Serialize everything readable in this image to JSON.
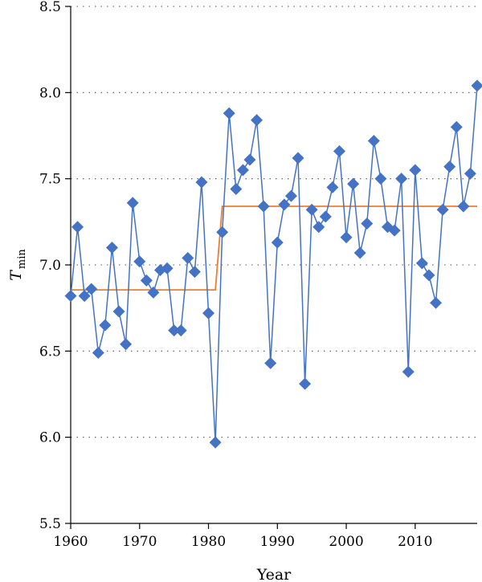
{
  "chart_data": {
    "type": "line",
    "xlabel": "Year",
    "ylabel": "T",
    "ylabel_subscript": "min",
    "xlim": [
      1960,
      2019
    ],
    "ylim": [
      5.5,
      8.5
    ],
    "x_ticks": [
      1960,
      1970,
      1980,
      1990,
      2000,
      2010
    ],
    "x_tick_labels": [
      "1960",
      "1970",
      "1980",
      "1990",
      "2000",
      "2010"
    ],
    "y_ticks": [
      5.5,
      6.0,
      6.5,
      7.0,
      7.5,
      8.0,
      8.5
    ],
    "y_tick_labels": [
      "5.5",
      "6.0",
      "6.5",
      "7.0",
      "7.5",
      "8.0",
      "8.5"
    ],
    "grid": "horizontal-dotted",
    "series": [
      {
        "style": "line-diamond",
        "color": "#4472c4",
        "x": [
          1960,
          1961,
          1962,
          1963,
          1964,
          1965,
          1966,
          1967,
          1968,
          1969,
          1970,
          1971,
          1972,
          1973,
          1974,
          1975,
          1976,
          1977,
          1978,
          1979,
          1980,
          1981,
          1982,
          1983,
          1984,
          1985,
          1986,
          1987,
          1988,
          1989,
          1990,
          1991,
          1992,
          1993,
          1994,
          1995,
          1996,
          1997,
          1998,
          1999,
          2000,
          2001,
          2002,
          2003,
          2004,
          2005,
          2006,
          2007,
          2008,
          2009,
          2010,
          2011,
          2012,
          2013,
          2014,
          2015,
          2016,
          2017,
          2018,
          2019
        ],
        "y": [
          6.82,
          7.22,
          6.82,
          6.86,
          6.49,
          6.65,
          7.1,
          6.73,
          6.54,
          7.36,
          7.02,
          6.91,
          6.84,
          6.97,
          6.98,
          6.62,
          6.62,
          7.04,
          6.96,
          7.48,
          6.72,
          5.97,
          7.19,
          7.88,
          7.44,
          7.55,
          7.61,
          7.84,
          7.34,
          6.43,
          7.13,
          7.35,
          7.4,
          7.62,
          6.31,
          7.32,
          7.22,
          7.28,
          7.45,
          7.66,
          7.16,
          7.47,
          7.07,
          7.24,
          7.72,
          7.5,
          7.22,
          7.2,
          7.5,
          6.38,
          7.55,
          7.01,
          6.94,
          6.78,
          7.32,
          7.57,
          7.8,
          7.34,
          7.53,
          8.04
        ]
      },
      {
        "style": "step",
        "color": "#ed7d31",
        "segments": [
          {
            "x_start": 1960,
            "x_end": 1981,
            "y": 6.855
          },
          {
            "x_start": 1982,
            "x_end": 2019,
            "y": 7.34
          }
        ]
      }
    ]
  }
}
